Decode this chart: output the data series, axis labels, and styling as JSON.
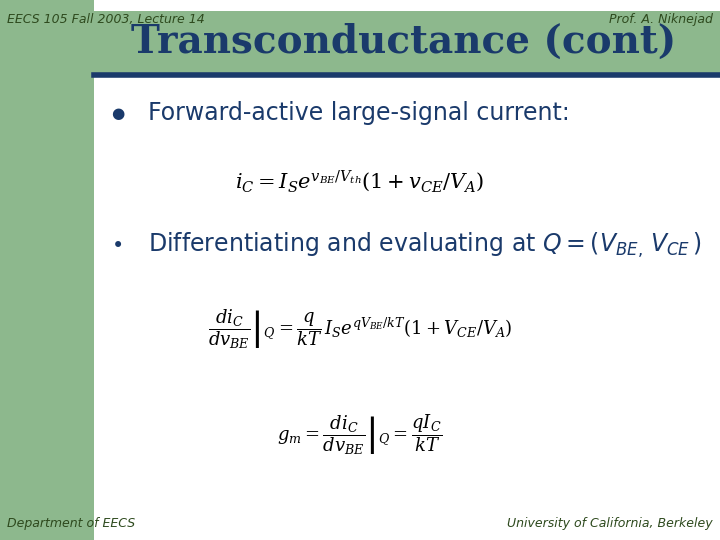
{
  "bg_color": "#ffffff",
  "left_panel_color": "#8db88d",
  "title": "Transconductance (cont)",
  "title_color": "#1a3a6b",
  "title_fontsize": 28,
  "header_left": "EECS 105 Fall 2003, Lecture 14",
  "header_right": "Prof. A. Niknejad",
  "header_color": "#2e4a1e",
  "header_fontsize": 9,
  "footer_left": "Department of EECS",
  "footer_right": "University of California, Berkeley",
  "footer_color": "#2e4a1e",
  "footer_fontsize": 9,
  "divider_color": "#1a3a6b",
  "bullet1_text": "Forward-active large-signal current:",
  "bullet_color": "#1a3a6b",
  "bullet_fontsize": 17,
  "eq_color": "#000000",
  "eq_fontsize": 14
}
